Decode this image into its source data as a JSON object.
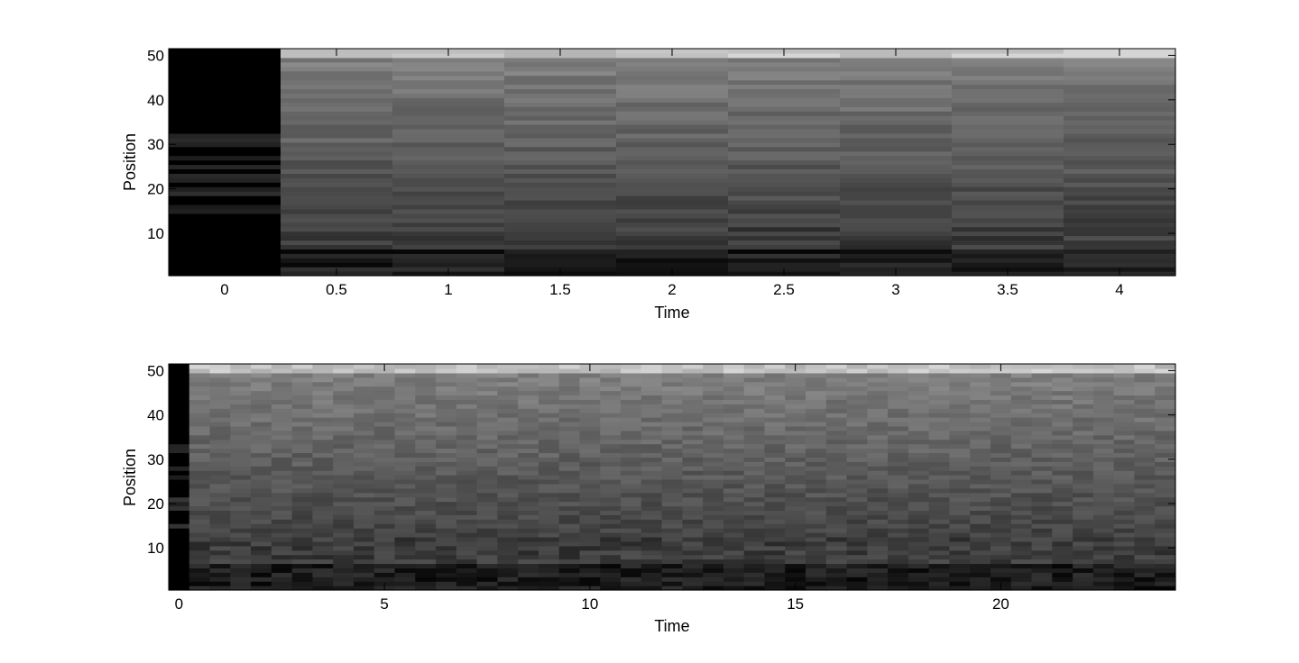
{
  "chart_data": [
    {
      "type": "heatmap",
      "xlabel": "Time",
      "ylabel": "Position",
      "x": [
        0,
        0.5,
        1,
        1.5,
        2,
        2.5,
        3,
        3.5,
        4
      ],
      "x_tick_labels": [
        "0",
        "0.5",
        "1",
        "1.5",
        "2",
        "2.5",
        "3",
        "3.5",
        "4"
      ],
      "xlim": [
        -0.25,
        4.25
      ],
      "y_tick_labels": [
        "10",
        "20",
        "30",
        "40",
        "50"
      ],
      "y_ticks": [
        10,
        20,
        30,
        40,
        50
      ],
      "ylim": [
        0.5,
        51.5
      ],
      "rows": 51,
      "colormap": "gray",
      "seed": 11
    },
    {
      "type": "heatmap",
      "xlabel": "Time",
      "ylabel": "Position",
      "x_start": 0,
      "x_step": 0.5,
      "columns": 49,
      "x_tick_labels": [
        "0",
        "5",
        "10",
        "15",
        "20"
      ],
      "x_ticks": [
        0,
        5,
        10,
        15,
        20
      ],
      "xlim": [
        -0.25,
        24.25
      ],
      "y_tick_labels": [
        "10",
        "20",
        "30",
        "40",
        "50"
      ],
      "y_ticks": [
        10,
        20,
        30,
        40,
        50
      ],
      "ylim": [
        0.5,
        51.5
      ],
      "rows": 51,
      "colormap": "gray",
      "seed": 29
    }
  ]
}
